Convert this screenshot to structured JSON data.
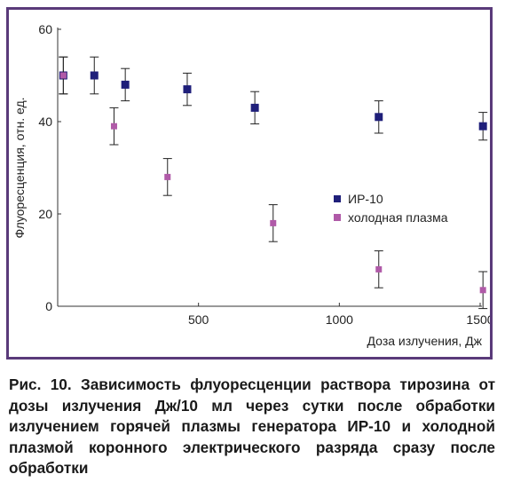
{
  "chart_data": {
    "type": "scatter",
    "xlabel": "Доза излучения, Дж",
    "ylabel": "Флуоресценция, отн. ед.",
    "xlim": [
      0,
      1500
    ],
    "ylim": [
      0,
      60
    ],
    "xticks": [
      500,
      1000,
      1500
    ],
    "yticks": [
      0,
      20,
      40,
      60
    ],
    "grid": false,
    "legend_position": "right",
    "series": [
      {
        "name": "ИР-10",
        "color": "#1f1f7a",
        "marker": "square",
        "x": [
          20,
          130,
          240,
          460,
          700,
          1140,
          1510
        ],
        "y": [
          50,
          50,
          48,
          47,
          43,
          41,
          39
        ],
        "error": [
          4,
          4,
          3.5,
          3.5,
          3.5,
          3.5,
          3
        ]
      },
      {
        "name": "холодная плазма",
        "color": "#b05aa8",
        "marker": "square",
        "x": [
          20,
          200,
          390,
          765,
          1140,
          1510
        ],
        "y": [
          50,
          39,
          28,
          18,
          8,
          3.5
        ],
        "error": [
          4,
          4,
          4,
          4,
          4,
          4
        ]
      }
    ]
  },
  "caption": "Рис. 10. Зависимость флуоресценции раствора тирозина от дозы излучения Дж/10 мл через сутки после обработки излучением горячей плазмы генератора ИР-10 и холодной плазмой коронного электрического разряда сразу после обработки"
}
